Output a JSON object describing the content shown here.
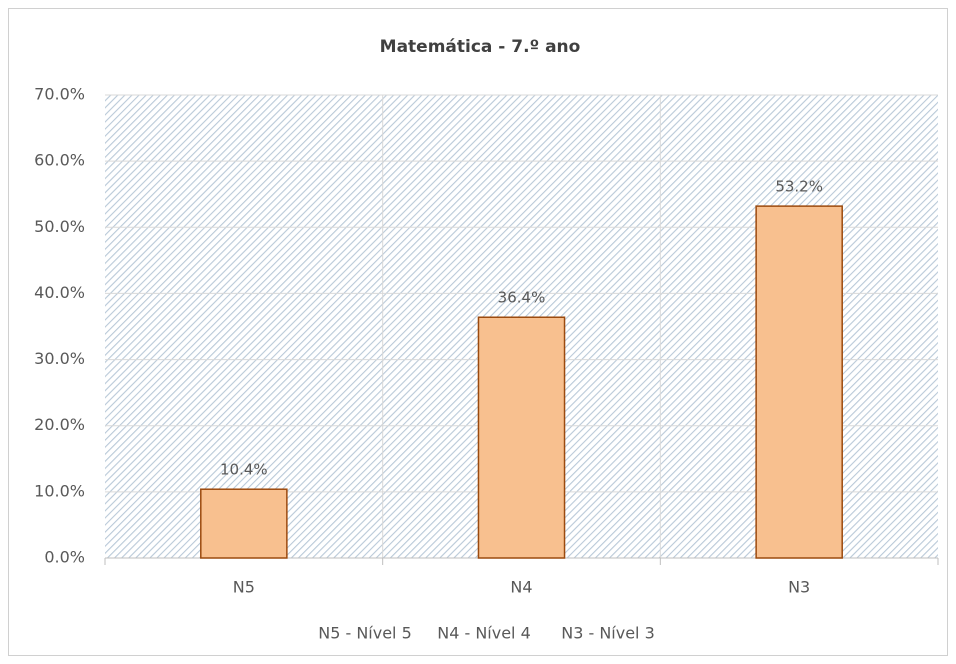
{
  "chart_data": {
    "type": "bar",
    "title": "Matemática - 7.º ano",
    "categories": [
      "N5",
      "N4",
      "N3"
    ],
    "values": [
      10.4,
      36.4,
      53.2
    ],
    "value_labels": [
      "10.4%",
      "36.4%",
      "53.2%"
    ],
    "color": "#f8c08f",
    "edge_color": "#9c4a0e",
    "ylim": [
      0,
      70
    ],
    "yticks": [
      {
        "value": 0,
        "label": "0.0%"
      },
      {
        "value": 10,
        "label": "10.0%"
      },
      {
        "value": 20,
        "label": "20.0%"
      },
      {
        "value": 30,
        "label": "30.0%"
      },
      {
        "value": 40,
        "label": "40.0%"
      },
      {
        "value": 50,
        "label": "50.0%"
      },
      {
        "value": 60,
        "label": "60.0%"
      },
      {
        "value": 70,
        "label": "70.0%"
      }
    ],
    "grid": true,
    "annotations": [
      "N5 - Nível 5",
      "N4 - Nível 4",
      "N3 - Nível 3"
    ]
  }
}
